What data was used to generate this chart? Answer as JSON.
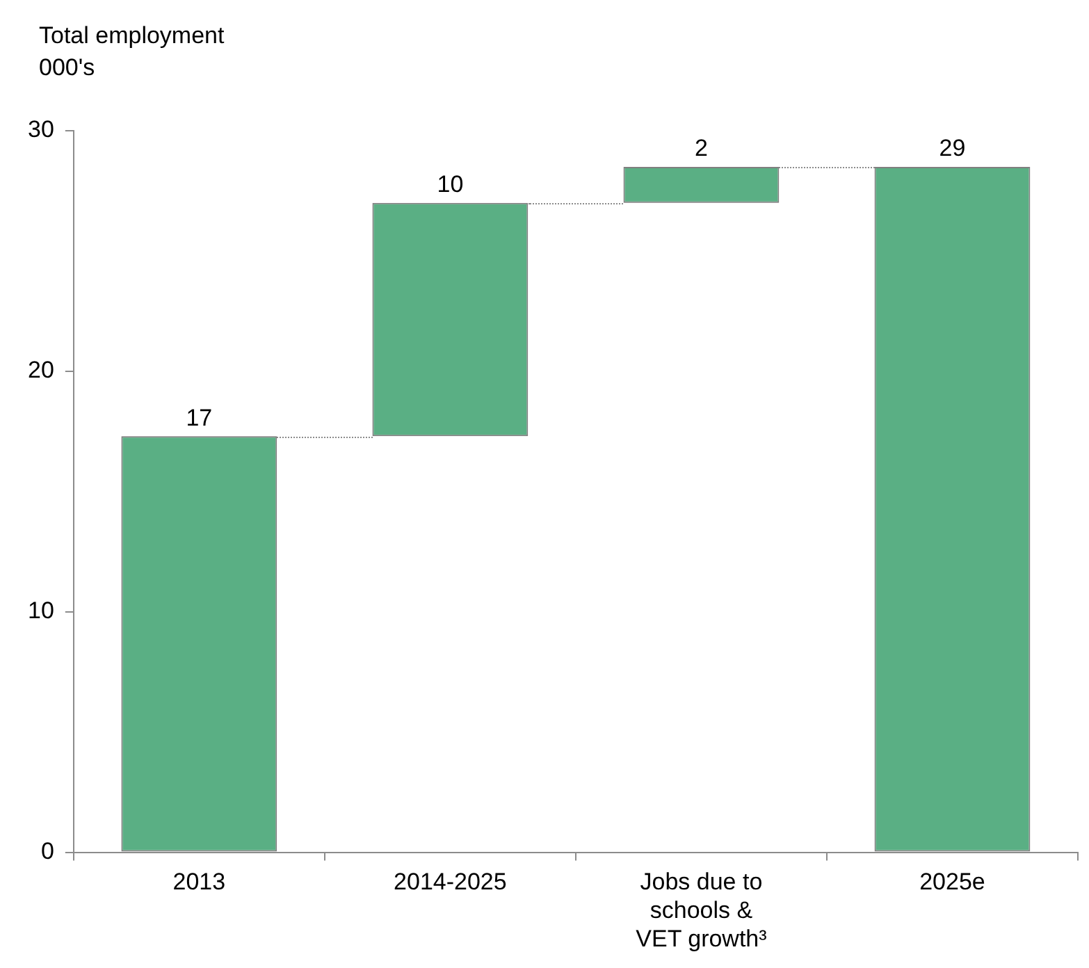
{
  "chart_data": {
    "type": "bar",
    "ylabel": "Total employment\n000's",
    "categories": [
      "2013",
      "2014-2025",
      "Jobs due to schools & VET growth³",
      "2025e"
    ],
    "values": [
      17.3,
      9.7,
      1.5,
      28.5
    ],
    "base": [
      0,
      17.3,
      27.0,
      0
    ],
    "value_labels": [
      "17",
      "10",
      "2",
      "29"
    ],
    "color": "#5aaf84",
    "ylim": [
      0,
      30
    ],
    "yticks": [
      0,
      10,
      20,
      30
    ],
    "grid": false,
    "legend": false
  }
}
